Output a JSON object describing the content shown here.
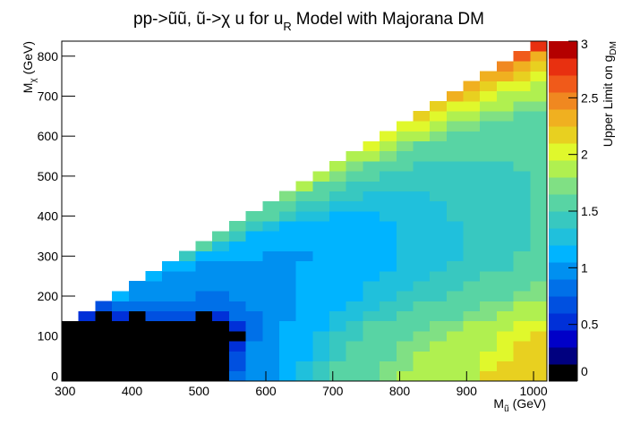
{
  "chart_data": {
    "type": "heatmap",
    "title": {
      "main": "pp->ũũ, ũ->χ u for u",
      "sub": "R",
      "rest": "Model with Majorana DM"
    },
    "xlabel": {
      "main": "M",
      "sub": "ũ",
      "rest": "(GeV)"
    },
    "ylabel": {
      "main": "M",
      "sub": "χ",
      "rest": "(GeV)"
    },
    "zlabel": {
      "main": "Upper Limit on g",
      "sub": "DM"
    },
    "xlim": [
      295,
      1020
    ],
    "ylim": [
      -12.5,
      837.5
    ],
    "zlim": [
      0,
      3
    ],
    "xticks": [
      300,
      400,
      500,
      600,
      700,
      800,
      900,
      1000
    ],
    "yticks": [
      0,
      100,
      200,
      300,
      400,
      500,
      600,
      700,
      800
    ],
    "zticks": [
      0,
      0.5,
      1,
      1.5,
      2,
      2.5,
      3
    ],
    "colors": [
      "#000000",
      "#00007f",
      "#0000c8",
      "#0030d8",
      "#0050e0",
      "#0070e8",
      "#0090f0",
      "#00b4ff",
      "#20c0dc",
      "#38c8c0",
      "#58d4a4",
      "#80e084",
      "#b0f050",
      "#e0f82c",
      "#e8d020",
      "#f0b020",
      "#f08820",
      "#f05a1a",
      "#e83010",
      "#b40000"
    ],
    "values": [
      [
        0.05,
        0.05,
        0.05,
        0.05,
        0.05,
        0.05,
        0.05,
        0.05,
        0.05,
        0.05,
        0.8,
        0.95,
        1.0,
        1.2,
        1.25,
        1.45,
        1.5,
        1.55,
        1.6,
        1.7,
        1.8,
        1.8,
        1.85,
        1.85,
        1.9,
        2.1,
        2.1,
        2.2,
        2.2
      ],
      [
        0.05,
        0.05,
        0.05,
        0.05,
        0.05,
        0.05,
        0.05,
        0.05,
        0.05,
        0.05,
        0.7,
        0.95,
        1.0,
        1.2,
        1.25,
        1.4,
        1.5,
        1.55,
        1.6,
        1.7,
        1.75,
        1.8,
        1.85,
        1.85,
        1.9,
        2.0,
        2.1,
        2.2,
        2.2
      ],
      [
        0.05,
        0.05,
        0.05,
        0.05,
        0.05,
        0.05,
        0.05,
        0.05,
        0.05,
        0.05,
        0.7,
        0.9,
        1.0,
        1.15,
        1.2,
        1.3,
        1.45,
        1.5,
        1.6,
        1.65,
        1.7,
        1.8,
        1.8,
        1.85,
        1.9,
        1.95,
        2.0,
        2.1,
        2.2
      ],
      [
        0.05,
        0.05,
        0.05,
        0.05,
        0.05,
        0.05,
        0.05,
        0.05,
        0.05,
        0.05,
        0.6,
        0.9,
        0.95,
        1.1,
        1.2,
        1.3,
        1.4,
        1.5,
        1.55,
        1.6,
        1.7,
        1.75,
        1.8,
        1.8,
        1.85,
        1.9,
        2.0,
        2.1,
        2.1
      ],
      [
        0.05,
        0.05,
        0.05,
        0.05,
        0.05,
        0.05,
        0.05,
        0.05,
        0.05,
        0.05,
        0.05,
        0.8,
        0.95,
        1.1,
        1.15,
        1.25,
        1.35,
        1.45,
        1.5,
        1.6,
        1.65,
        1.7,
        1.75,
        1.8,
        1.8,
        1.9,
        1.95,
        2.0,
        2.1
      ],
      [
        0.05,
        0.05,
        0.05,
        0.05,
        0.05,
        0.05,
        0.05,
        0.05,
        0.05,
        0.05,
        0.55,
        0.75,
        0.95,
        1.05,
        1.15,
        1.2,
        1.3,
        1.4,
        1.5,
        1.55,
        1.6,
        1.65,
        1.7,
        1.75,
        1.8,
        1.85,
        1.9,
        1.95,
        2.0
      ],
      [
        null,
        0.5,
        0.05,
        0.55,
        0.05,
        0.65,
        0.65,
        0.65,
        0.05,
        0.55,
        0.75,
        0.75,
        0.95,
        1.0,
        1.1,
        1.2,
        1.25,
        1.3,
        1.4,
        1.45,
        1.5,
        1.55,
        1.6,
        1.65,
        1.7,
        1.75,
        1.8,
        1.85,
        1.9
      ],
      [
        null,
        null,
        0.7,
        0.8,
        0.85,
        0.8,
        0.8,
        0.75,
        0.75,
        0.75,
        0.8,
        0.9,
        0.95,
        1.0,
        1.05,
        1.15,
        1.2,
        1.25,
        1.3,
        1.4,
        1.45,
        1.5,
        1.55,
        1.6,
        1.65,
        1.7,
        1.75,
        1.8,
        1.85
      ],
      [
        null,
        null,
        null,
        1.1,
        0.95,
        0.95,
        0.9,
        0.9,
        0.85,
        0.85,
        0.9,
        0.9,
        0.95,
        1.0,
        1.05,
        1.1,
        1.15,
        1.2,
        1.25,
        1.3,
        1.35,
        1.4,
        1.45,
        1.5,
        1.55,
        1.6,
        1.65,
        1.7,
        1.75
      ],
      [
        null,
        null,
        null,
        null,
        1.0,
        1.0,
        0.95,
        0.95,
        0.9,
        0.9,
        0.9,
        0.95,
        0.95,
        1.0,
        1.05,
        1.1,
        1.15,
        1.2,
        1.25,
        1.3,
        1.3,
        1.35,
        1.4,
        1.45,
        1.5,
        1.55,
        1.6,
        1.65,
        1.7
      ],
      [
        null,
        null,
        null,
        null,
        null,
        1.05,
        1.0,
        1.0,
        0.95,
        0.95,
        0.95,
        0.95,
        1.0,
        1.0,
        1.05,
        1.1,
        1.15,
        1.2,
        1.2,
        1.25,
        1.3,
        1.3,
        1.35,
        1.4,
        1.45,
        1.5,
        1.5,
        1.55,
        1.6
      ],
      [
        null,
        null,
        null,
        null,
        null,
        null,
        1.2,
        1.05,
        1.0,
        1.0,
        1.0,
        1.0,
        1.0,
        1.0,
        1.05,
        1.05,
        1.1,
        1.15,
        1.2,
        1.2,
        1.25,
        1.3,
        1.3,
        1.35,
        1.4,
        1.45,
        1.45,
        1.5,
        1.55
      ],
      [
        null,
        null,
        null,
        null,
        null,
        null,
        null,
        1.35,
        1.2,
        1.1,
        1.05,
        1.05,
        1.0,
        1.0,
        1.0,
        1.05,
        1.05,
        1.1,
        1.15,
        1.2,
        1.25,
        1.25,
        1.3,
        1.3,
        1.35,
        1.4,
        1.45,
        1.5,
        1.5
      ],
      [
        null,
        null,
        null,
        null,
        null,
        null,
        null,
        null,
        1.5,
        1.25,
        1.15,
        1.1,
        1.05,
        1.05,
        1.05,
        1.05,
        1.1,
        1.1,
        1.15,
        1.2,
        1.25,
        1.25,
        1.3,
        1.3,
        1.35,
        1.4,
        1.4,
        1.45,
        1.5
      ],
      [
        null,
        null,
        null,
        null,
        null,
        null,
        null,
        null,
        null,
        1.5,
        1.35,
        1.2,
        1.15,
        1.1,
        1.1,
        1.1,
        1.1,
        1.15,
        1.15,
        1.2,
        1.25,
        1.25,
        1.3,
        1.3,
        1.35,
        1.35,
        1.4,
        1.45,
        1.5
      ],
      [
        null,
        null,
        null,
        null,
        null,
        null,
        null,
        null,
        null,
        null,
        1.55,
        1.4,
        1.3,
        1.2,
        1.2,
        1.15,
        1.15,
        1.15,
        1.2,
        1.2,
        1.25,
        1.25,
        1.3,
        1.3,
        1.35,
        1.35,
        1.4,
        1.45,
        1.5
      ],
      [
        null,
        null,
        null,
        null,
        null,
        null,
        null,
        null,
        null,
        null,
        null,
        1.6,
        1.5,
        1.35,
        1.3,
        1.25,
        1.2,
        1.2,
        1.2,
        1.25,
        1.25,
        1.3,
        1.3,
        1.35,
        1.35,
        1.35,
        1.4,
        1.45,
        1.5
      ],
      [
        null,
        null,
        null,
        null,
        null,
        null,
        null,
        null,
        null,
        null,
        null,
        null,
        1.65,
        1.55,
        1.45,
        1.35,
        1.3,
        1.25,
        1.25,
        1.25,
        1.3,
        1.3,
        1.3,
        1.35,
        1.35,
        1.4,
        1.4,
        1.45,
        1.5
      ],
      [
        null,
        null,
        null,
        null,
        null,
        null,
        null,
        null,
        null,
        null,
        null,
        null,
        null,
        1.7,
        1.6,
        1.5,
        1.4,
        1.35,
        1.3,
        1.3,
        1.3,
        1.3,
        1.35,
        1.35,
        1.4,
        1.4,
        1.4,
        1.45,
        1.5
      ],
      [
        null,
        null,
        null,
        null,
        null,
        null,
        null,
        null,
        null,
        null,
        null,
        null,
        null,
        null,
        1.8,
        1.65,
        1.55,
        1.45,
        1.4,
        1.35,
        1.35,
        1.35,
        1.35,
        1.4,
        1.4,
        1.4,
        1.45,
        1.45,
        1.5
      ],
      [
        null,
        null,
        null,
        null,
        null,
        null,
        null,
        null,
        null,
        null,
        null,
        null,
        null,
        null,
        null,
        1.85,
        1.7,
        1.6,
        1.5,
        1.45,
        1.4,
        1.4,
        1.4,
        1.4,
        1.4,
        1.45,
        1.45,
        1.45,
        1.5
      ],
      [
        null,
        null,
        null,
        null,
        null,
        null,
        null,
        null,
        null,
        null,
        null,
        null,
        null,
        null,
        null,
        null,
        1.9,
        1.75,
        1.65,
        1.55,
        1.5,
        1.45,
        1.45,
        1.45,
        1.45,
        1.45,
        1.45,
        1.5,
        1.5
      ],
      [
        null,
        null,
        null,
        null,
        null,
        null,
        null,
        null,
        null,
        null,
        null,
        null,
        null,
        null,
        null,
        null,
        null,
        1.9,
        1.8,
        1.7,
        1.6,
        1.55,
        1.5,
        1.5,
        1.5,
        1.5,
        1.5,
        1.5,
        1.5
      ],
      [
        null,
        null,
        null,
        null,
        null,
        null,
        null,
        null,
        null,
        null,
        null,
        null,
        null,
        null,
        null,
        null,
        null,
        null,
        1.95,
        1.85,
        1.75,
        1.65,
        1.6,
        1.55,
        1.5,
        1.5,
        1.5,
        1.5,
        1.55
      ],
      [
        null,
        null,
        null,
        null,
        null,
        null,
        null,
        null,
        null,
        null,
        null,
        null,
        null,
        null,
        null,
        null,
        null,
        null,
        null,
        2.0,
        1.9,
        1.8,
        1.7,
        1.65,
        1.6,
        1.55,
        1.55,
        1.55,
        1.55
      ],
      [
        null,
        null,
        null,
        null,
        null,
        null,
        null,
        null,
        null,
        null,
        null,
        null,
        null,
        null,
        null,
        null,
        null,
        null,
        null,
        null,
        2.05,
        1.95,
        1.85,
        1.75,
        1.7,
        1.65,
        1.6,
        1.6,
        1.6
      ],
      [
        null,
        null,
        null,
        null,
        null,
        null,
        null,
        null,
        null,
        null,
        null,
        null,
        null,
        null,
        null,
        null,
        null,
        null,
        null,
        null,
        null,
        2.1,
        2.0,
        1.9,
        1.8,
        1.75,
        1.7,
        1.65,
        1.65
      ],
      [
        null,
        null,
        null,
        null,
        null,
        null,
        null,
        null,
        null,
        null,
        null,
        null,
        null,
        null,
        null,
        null,
        null,
        null,
        null,
        null,
        null,
        null,
        2.15,
        2.05,
        1.95,
        1.85,
        1.8,
        1.75,
        1.7
      ],
      [
        null,
        null,
        null,
        null,
        null,
        null,
        null,
        null,
        null,
        null,
        null,
        null,
        null,
        null,
        null,
        null,
        null,
        null,
        null,
        null,
        null,
        null,
        null,
        2.25,
        2.1,
        2.0,
        1.9,
        1.85,
        1.8
      ],
      [
        null,
        null,
        null,
        null,
        null,
        null,
        null,
        null,
        null,
        null,
        null,
        null,
        null,
        null,
        null,
        null,
        null,
        null,
        null,
        null,
        null,
        null,
        null,
        null,
        2.3,
        2.15,
        2.05,
        1.95,
        1.9
      ],
      [
        null,
        null,
        null,
        null,
        null,
        null,
        null,
        null,
        null,
        null,
        null,
        null,
        null,
        null,
        null,
        null,
        null,
        null,
        null,
        null,
        null,
        null,
        null,
        null,
        null,
        2.4,
        2.25,
        2.15,
        2.05
      ],
      [
        null,
        null,
        null,
        null,
        null,
        null,
        null,
        null,
        null,
        null,
        null,
        null,
        null,
        null,
        null,
        null,
        null,
        null,
        null,
        null,
        null,
        null,
        null,
        null,
        null,
        null,
        2.5,
        2.35,
        2.2
      ],
      [
        null,
        null,
        null,
        null,
        null,
        null,
        null,
        null,
        null,
        null,
        null,
        null,
        null,
        null,
        null,
        null,
        null,
        null,
        null,
        null,
        null,
        null,
        null,
        null,
        null,
        null,
        null,
        2.6,
        2.4
      ],
      [
        null,
        null,
        null,
        null,
        null,
        null,
        null,
        null,
        null,
        null,
        null,
        null,
        null,
        null,
        null,
        null,
        null,
        null,
        null,
        null,
        null,
        null,
        null,
        null,
        null,
        null,
        null,
        null,
        2.75
      ]
    ]
  }
}
